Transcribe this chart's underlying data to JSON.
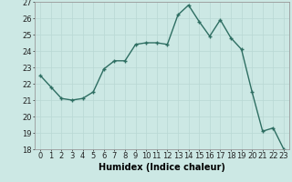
{
  "x": [
    0,
    1,
    2,
    3,
    4,
    5,
    6,
    7,
    8,
    9,
    10,
    11,
    12,
    13,
    14,
    15,
    16,
    17,
    18,
    19,
    20,
    21,
    22,
    23
  ],
  "y": [
    22.5,
    21.8,
    21.1,
    21.0,
    21.1,
    21.5,
    22.9,
    23.4,
    23.4,
    24.4,
    24.5,
    24.5,
    24.4,
    26.2,
    26.8,
    25.8,
    24.9,
    25.9,
    24.8,
    24.1,
    21.5,
    19.1,
    19.3,
    18.0
  ],
  "xlabel": "Humidex (Indice chaleur)",
  "ylim": [
    18,
    27
  ],
  "xlim": [
    -0.5,
    23.5
  ],
  "yticks": [
    18,
    19,
    20,
    21,
    22,
    23,
    24,
    25,
    26,
    27
  ],
  "xticks": [
    0,
    1,
    2,
    3,
    4,
    5,
    6,
    7,
    8,
    9,
    10,
    11,
    12,
    13,
    14,
    15,
    16,
    17,
    18,
    19,
    20,
    21,
    22,
    23
  ],
  "line_color": "#2e6e62",
  "marker_color": "#2e6e62",
  "bg_color": "#cce8e4",
  "grid_color": "#b8d8d4",
  "font_size_xlabel": 7,
  "font_size_ticks": 6,
  "line_width": 1.0,
  "marker_size": 2.5
}
